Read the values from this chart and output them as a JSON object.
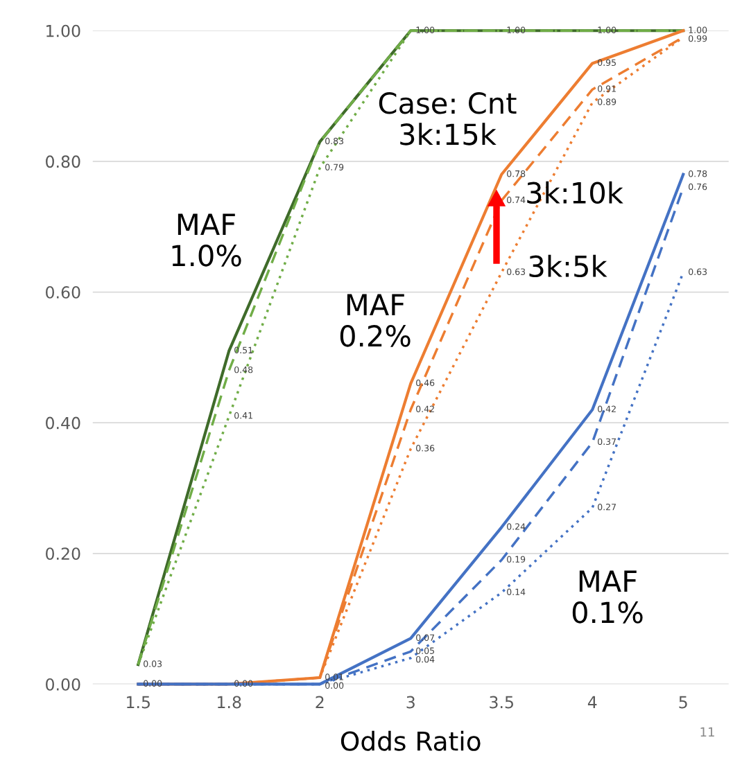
{
  "chart_data": {
    "type": "line",
    "categories": [
      "1.5",
      "1.8",
      "2",
      "3",
      "3.5",
      "4",
      "5"
    ],
    "xlabel": "Odds Ratio",
    "ylim": [
      0,
      1
    ],
    "yticks": [
      {
        "value": 0,
        "label": "0.00"
      },
      {
        "value": 0.2,
        "label": "0.20"
      },
      {
        "value": 0.4,
        "label": "0.40"
      },
      {
        "value": 0.6,
        "label": "0.60"
      },
      {
        "value": 0.8,
        "label": "0.80"
      },
      {
        "value": 1,
        "label": "1.00"
      }
    ],
    "grid": "y",
    "marker": "none",
    "series": [
      {
        "color": "#3f6b2a",
        "line_style": "solid",
        "values": [
          0.03,
          0.51,
          0.83,
          1.0,
          1.0,
          1.0,
          1.0
        ],
        "value_labels": [
          "0.03",
          "0.51",
          "0.83",
          "1.00",
          "1.00",
          "1.00",
          "1.00"
        ]
      },
      {
        "color": "#70ad47",
        "line_style": "dashed",
        "values": [
          0.03,
          0.48,
          0.83,
          1.0,
          1.0,
          1.0,
          1.0
        ],
        "value_labels": [
          null,
          "0.48",
          null,
          null,
          null,
          null,
          null
        ]
      },
      {
        "color": "#70ad47",
        "line_style": "dotted",
        "values": [
          0.03,
          0.41,
          0.79,
          1.0,
          1.0,
          1.0,
          1.0
        ],
        "value_labels": [
          null,
          "0.41",
          "0.79",
          null,
          null,
          null,
          null
        ]
      },
      {
        "color": "#ed7d31",
        "line_style": "solid",
        "values": [
          0.0,
          0.0,
          0.01,
          0.46,
          0.78,
          0.95,
          1.0
        ],
        "value_labels": [
          "0.00",
          "0.00",
          "0.01",
          "0.46",
          "0.78",
          "0.95",
          null
        ]
      },
      {
        "color": "#ed7d31",
        "line_style": "dashed",
        "values": [
          0.0,
          0.0,
          0.01,
          0.42,
          0.74,
          0.91,
          0.99
        ],
        "value_labels": [
          null,
          null,
          null,
          "0.42",
          "0.74",
          "0.91",
          "0.99"
        ]
      },
      {
        "color": "#ed7d31",
        "line_style": "dotted",
        "values": [
          0.0,
          0.0,
          0.01,
          0.36,
          0.63,
          0.89,
          0.99
        ],
        "value_labels": [
          null,
          null,
          null,
          "0.36",
          "0.63",
          "0.89",
          null
        ]
      },
      {
        "color": "#4472c4",
        "line_style": "solid",
        "values": [
          0.0,
          0.0,
          0.0,
          0.07,
          0.24,
          0.42,
          0.78
        ],
        "value_labels": [
          null,
          null,
          "0.00",
          "0.07",
          "0.24",
          "0.42",
          "0.78"
        ]
      },
      {
        "color": "#4472c4",
        "line_style": "dashed",
        "values": [
          0.0,
          0.0,
          0.0,
          0.05,
          0.19,
          0.37,
          0.76
        ],
        "value_labels": [
          null,
          null,
          null,
          "0.05",
          "0.19",
          "0.37",
          "0.76"
        ]
      },
      {
        "color": "#4472c4",
        "line_style": "dotted",
        "values": [
          0.0,
          0.0,
          0.0,
          0.04,
          0.14,
          0.27,
          0.63
        ],
        "value_labels": [
          null,
          null,
          null,
          "0.04",
          "0.14",
          "0.27",
          "0.63"
        ]
      }
    ],
    "annotations": [
      "Case: Cnt\n3k:15k",
      "3k:10k",
      "3k:5k",
      "MAF\n1.0%",
      "MAF\n0.2%",
      "MAF\n0.1%",
      "11"
    ]
  }
}
